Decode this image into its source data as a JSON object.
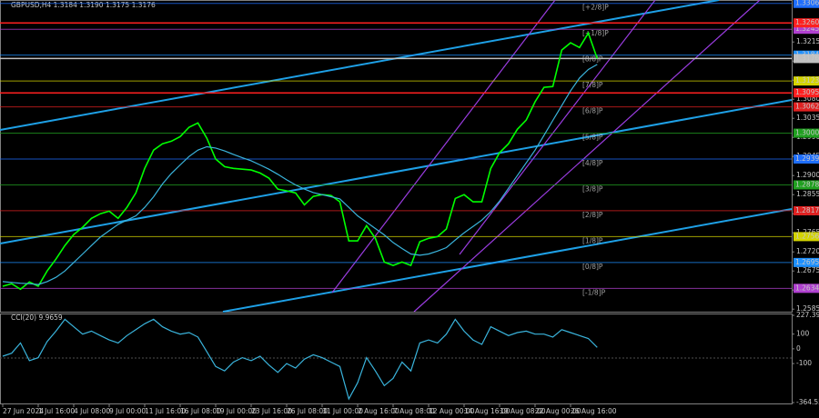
{
  "chart_data": [
    {
      "type": "line",
      "title": "GBPUSD,H4  1.3184 1.3190 1.3175 1.3176",
      "categories": [
        "27 Jun 2024",
        null,
        null,
        null,
        "1 Jul 16:00",
        null,
        null,
        null,
        "4 Jul 08:00",
        null,
        null,
        null,
        "9 Jul 00:00",
        null,
        null,
        null,
        "11 Jul 16:00",
        null,
        null,
        null,
        "16 Jul 08:00",
        null,
        null,
        null,
        "19 Jul 00:00",
        null,
        null,
        null,
        "23 Jul 16:00",
        null,
        null,
        null,
        "26 Jul 08:00",
        null,
        null,
        null,
        "31 Jul 00:00",
        null,
        null,
        null,
        "2 Aug 16:00",
        null,
        null,
        null,
        "7 Aug 08:00",
        null,
        null,
        null,
        "12 Aug 00:00",
        null,
        null,
        null,
        "14 Aug 16:00",
        null,
        null,
        null,
        "19 Aug 08:00",
        null,
        null,
        null,
        "22 Aug 00:00",
        null,
        null,
        null,
        "26 Aug 16:00",
        null,
        null,
        null
      ],
      "series": [
        {
          "name": "GBPUSD",
          "color": "#00ff00",
          "values": [
            1.2639,
            1.2645,
            1.2632,
            1.2649,
            1.2639,
            1.2675,
            1.2703,
            1.2735,
            1.2761,
            1.2778,
            1.2799,
            1.281,
            1.2816,
            1.2799,
            1.2825,
            1.2859,
            1.2917,
            1.296,
            1.2975,
            1.2981,
            1.2992,
            1.3014,
            1.3024,
            1.2988,
            1.2939,
            1.2921,
            1.2917,
            1.2915,
            1.2913,
            1.2906,
            1.2894,
            1.2868,
            1.2864,
            1.2859,
            1.2831,
            1.2851,
            1.2855,
            1.2853,
            1.2838,
            1.2746,
            1.2746,
            1.2782,
            1.2752,
            1.2696,
            1.2688,
            1.2696,
            1.2688,
            1.2744,
            1.2752,
            1.2756,
            1.2774,
            1.2846,
            1.2855,
            1.2838,
            1.2838,
            1.2917,
            1.2954,
            1.2975,
            1.3009,
            1.3031,
            1.3074,
            1.3108,
            1.311,
            1.3196,
            1.3213,
            1.3202,
            1.3236,
            1.3176
          ]
        },
        {
          "name": "MA",
          "color": "#3ab4dc",
          "values": [
            1.265,
            1.2648,
            1.2646,
            1.2645,
            1.2643,
            1.265,
            1.266,
            1.2675,
            1.2695,
            1.2715,
            1.2735,
            1.2755,
            1.277,
            1.2785,
            1.2795,
            1.2805,
            1.2825,
            1.285,
            1.288,
            1.2905,
            1.2925,
            1.2945,
            1.296,
            1.2968,
            1.2965,
            1.2958,
            1.295,
            1.2942,
            1.2935,
            1.2925,
            1.2915,
            1.2903,
            1.289,
            1.2878,
            1.2868,
            1.286,
            1.2855,
            1.285,
            1.2845,
            1.2825,
            1.2805,
            1.279,
            1.2775,
            1.276,
            1.2742,
            1.2728,
            1.2715,
            1.2712,
            1.2715,
            1.2722,
            1.273,
            1.2748,
            1.2765,
            1.278,
            1.2795,
            1.2815,
            1.284,
            1.287,
            1.29,
            1.293,
            1.296,
            1.2995,
            1.303,
            1.3065,
            1.31,
            1.313,
            1.315,
            1.3162
          ]
        }
      ],
      "ylim": [
        1.2579,
        1.3314
      ],
      "yticks": [
        1.2585,
        {
          "value": 1.263,
          "label": "1.2630"
        },
        1.2675,
        {
          "value": 1.272,
          "label": "1.2720"
        },
        1.2765,
        {
          "value": 1.281,
          "label": "1.2810"
        },
        1.2855,
        {
          "value": 1.29,
          "label": "1.2900"
        },
        1.2945,
        {
          "value": 1.299,
          "label": "1.2990"
        },
        1.3035,
        {
          "value": 1.308,
          "label": "1.3080"
        },
        1.3125,
        {
          "value": 1.317,
          "label": "1.3170"
        },
        1.3215
      ],
      "grid": false,
      "levels": [
        {
          "name": "[+2/8]P",
          "value": 1.3306,
          "label": "1.3306",
          "color": "#1e6eff"
        },
        {
          "name": "[+1/8]P",
          "value": 1.3245,
          "label": "1.3245",
          "color": "#b040d0"
        },
        {
          "name": "[8/8]P",
          "value": 1.3184,
          "label": "1.3184",
          "color": "#1e90ff"
        },
        {
          "name": "[7/8]P",
          "value": 1.3123,
          "label": "1.3123",
          "color": "#d4d400"
        },
        {
          "name": "[6/8]P",
          "value": 1.3062,
          "label": "1.3062",
          "color": "#e02020"
        },
        {
          "name": "[5/8]P",
          "value": 1.3,
          "label": "1.3000",
          "color": "#20a020"
        },
        {
          "name": "[4/8]P",
          "value": 1.2939,
          "label": "1.2939",
          "color": "#1e6eff"
        },
        {
          "name": "[3/8]P",
          "value": 1.2878,
          "label": "1.2878",
          "color": "#20a020"
        },
        {
          "name": "[2/8]P",
          "value": 1.2817,
          "label": "1.2817",
          "color": "#e02020"
        },
        {
          "name": "[1/8]P",
          "value": 1.2756,
          "label": "1.2756",
          "color": "#d4d400"
        },
        {
          "name": "[0/8]P",
          "value": 1.2695,
          "label": "1.2695",
          "color": "#1e90ff"
        },
        {
          "name": "[-1/8]P",
          "value": 1.2634,
          "label": "1.2634",
          "color": "#b040d0"
        }
      ],
      "lines": [
        {
          "value": 1.326,
          "label": "1.3260",
          "color": "#ff2020"
        },
        {
          "value": 1.3095,
          "label": "1.3095",
          "color": "#ff2020"
        },
        {
          "value": 1.3176,
          "label": "1.3176",
          "color": "#c0c0c0"
        }
      ]
    },
    {
      "type": "line",
      "title": "CCI(20) 9.9659",
      "series": [
        {
          "name": "CCI",
          "color": "#3ab4dc",
          "values": [
            -50,
            -30,
            40,
            -80,
            -60,
            50,
            120,
            200,
            150,
            100,
            120,
            90,
            60,
            40,
            90,
            130,
            170,
            200,
            150,
            120,
            100,
            110,
            80,
            -20,
            -120,
            -150,
            -90,
            -60,
            -80,
            -50,
            -110,
            -160,
            -100,
            -130,
            -70,
            -40,
            -60,
            -90,
            -120,
            -340,
            -230,
            -60,
            -150,
            -250,
            -200,
            -90,
            -150,
            40,
            60,
            40,
            100,
            200,
            120,
            60,
            30,
            150,
            120,
            90,
            110,
            120,
            100,
            100,
            80,
            130,
            110,
            90,
            70,
            9.9659
          ]
        }
      ],
      "ylim": [
        -364.55,
        227.39
      ],
      "yticks": [
        {
          "value": -364.55,
          "label": "-364.550"
        },
        -100,
        0,
        100,
        {
          "value": 227.39,
          "label": "227.390"
        }
      ]
    }
  ]
}
